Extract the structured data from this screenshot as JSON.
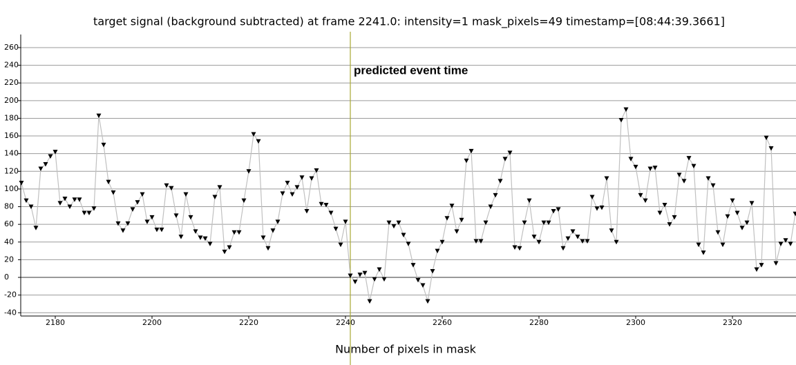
{
  "chart_data": {
    "type": "line",
    "title": "target signal (background subtracted) at frame 2241.0: intensity=1 mask_pixels=49 timestamp=[08:44:39.3661]",
    "x_label": "Number of pixels in mask",
    "x": [
      2173,
      2174,
      2175,
      2176,
      2177,
      2178,
      2179,
      2180,
      2181,
      2182,
      2183,
      2184,
      2185,
      2186,
      2187,
      2188,
      2189,
      2190,
      2191,
      2192,
      2193,
      2194,
      2195,
      2196,
      2197,
      2198,
      2199,
      2200,
      2201,
      2202,
      2203,
      2204,
      2205,
      2206,
      2207,
      2208,
      2209,
      2210,
      2211,
      2212,
      2213,
      2214,
      2215,
      2216,
      2217,
      2218,
      2219,
      2220,
      2221,
      2222,
      2223,
      2224,
      2225,
      2226,
      2227,
      2228,
      2229,
      2230,
      2231,
      2232,
      2233,
      2234,
      2235,
      2236,
      2237,
      2238,
      2239,
      2240,
      2241,
      2242,
      2243,
      2244,
      2245,
      2246,
      2247,
      2248,
      2249,
      2250,
      2251,
      2252,
      2253,
      2254,
      2255,
      2256,
      2257,
      2258,
      2259,
      2260,
      2261,
      2262,
      2263,
      2264,
      2265,
      2266,
      2267,
      2268,
      2269,
      2270,
      2271,
      2272,
      2273,
      2274,
      2275,
      2276,
      2277,
      2278,
      2279,
      2280,
      2281,
      2282,
      2283,
      2284,
      2285,
      2286,
      2287,
      2288,
      2289,
      2290,
      2291,
      2292,
      2293,
      2294,
      2295,
      2296,
      2297,
      2298,
      2299,
      2300,
      2301,
      2302,
      2303,
      2304,
      2305,
      2306,
      2307,
      2308,
      2309,
      2310,
      2311,
      2312,
      2313,
      2314,
      2315,
      2316,
      2317,
      2318,
      2319,
      2320,
      2321,
      2322,
      2323,
      2324,
      2325,
      2326,
      2327,
      2328,
      2329,
      2330,
      2331,
      2332,
      2333
    ],
    "values": [
      107,
      87,
      80,
      56,
      123,
      128,
      137,
      142,
      84,
      89,
      80,
      88,
      88,
      73,
      73,
      78,
      183,
      150,
      108,
      96,
      61,
      53,
      61,
      77,
      85,
      94,
      63,
      68,
      54,
      54,
      104,
      101,
      70,
      46,
      94,
      68,
      52,
      45,
      44,
      38,
      91,
      102,
      29,
      34,
      51,
      51,
      87,
      120,
      162,
      154,
      45,
      33,
      53,
      63,
      95,
      107,
      94,
      102,
      113,
      75,
      112,
      121,
      83,
      82,
      73,
      55,
      37,
      63,
      2,
      -5,
      3,
      5,
      -27,
      -2,
      9,
      -2,
      62,
      58,
      62,
      48,
      38,
      14,
      -3,
      -9,
      -27,
      7,
      30,
      40,
      67,
      81,
      52,
      65,
      132,
      143,
      41,
      41,
      62,
      80,
      93,
      109,
      134,
      141,
      34,
      33,
      62,
      87,
      46,
      40,
      62,
      62,
      75,
      77,
      33,
      44,
      52,
      46,
      41,
      41,
      91,
      78,
      79,
      112,
      53,
      40,
      178,
      190,
      134,
      125,
      93,
      87,
      123,
      124,
      73,
      82,
      60,
      68,
      116,
      109,
      135,
      126,
      37,
      28,
      112,
      104,
      51,
      37,
      69,
      87,
      73,
      56,
      62,
      84,
      9,
      14,
      158,
      146,
      16,
      38,
      42,
      38,
      72
    ],
    "line_color": "#c0c0c0",
    "marker_color": "#000000",
    "xlim": [
      2172.86,
      2333.14
    ],
    "ylim": [
      -43.7,
      274.8
    ],
    "xticks": [
      2180,
      2200,
      2220,
      2240,
      2260,
      2280,
      2300,
      2320
    ],
    "yticks": [
      -40,
      -20,
      0,
      20,
      40,
      60,
      80,
      100,
      120,
      140,
      160,
      180,
      200,
      220,
      240,
      260
    ],
    "grid": true,
    "event": {
      "x": 2241,
      "label": "predicted event time",
      "color": "#a8a832"
    }
  }
}
